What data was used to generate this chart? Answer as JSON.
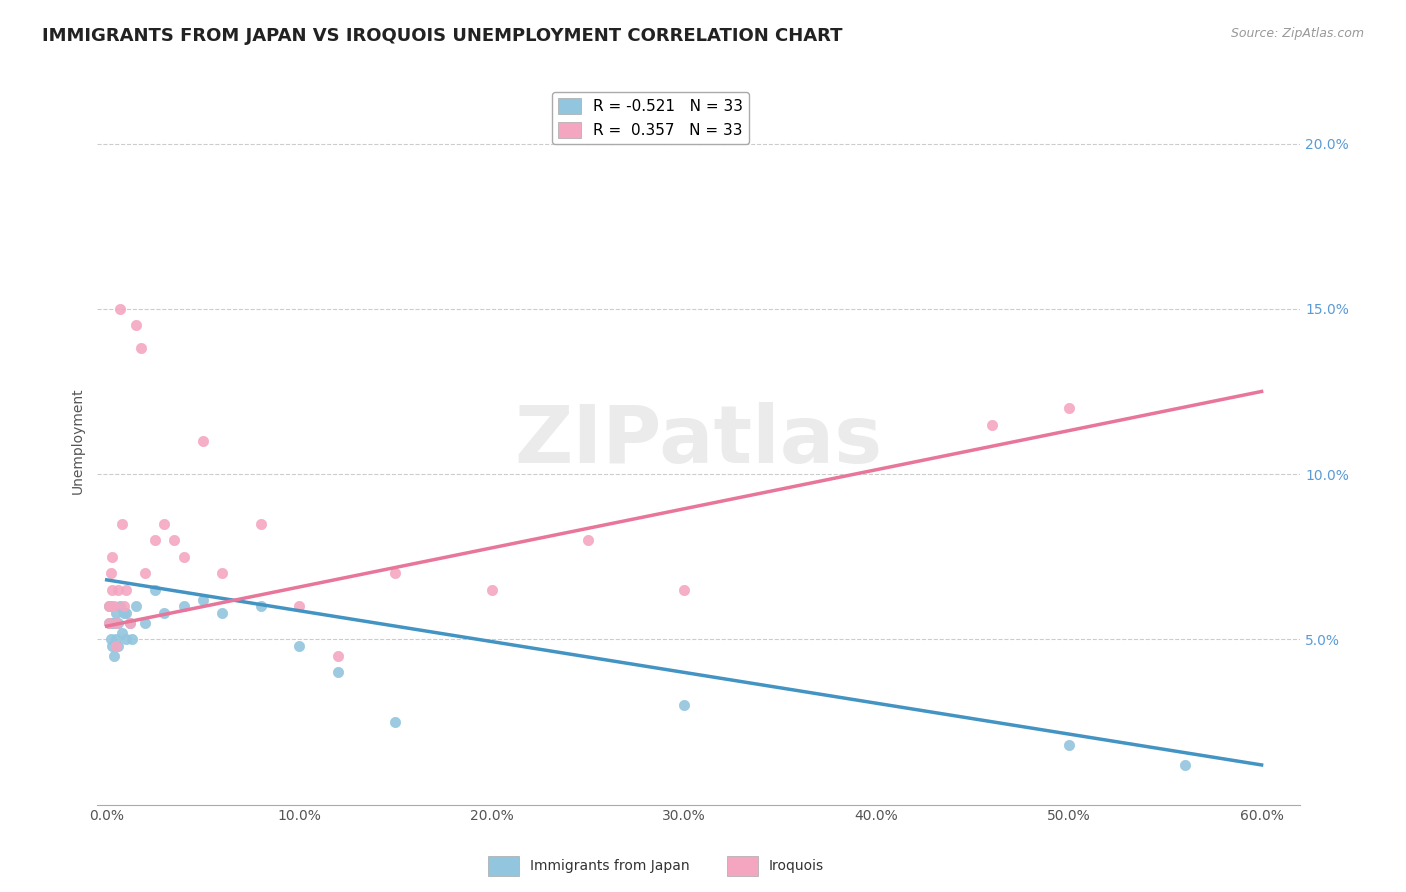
{
  "title": "IMMIGRANTS FROM JAPAN VS IROQUOIS UNEMPLOYMENT CORRELATION CHART",
  "source": "Source: ZipAtlas.com",
  "xlabel_japan": "Immigrants from Japan",
  "xlabel_iroquois": "Iroquois",
  "ylabel": "Unemployment",
  "watermark": "ZIPatlas",
  "legend": [
    {
      "label": "R = -0.521   N = 33",
      "color": "#92c5de"
    },
    {
      "label": "R =  0.357   N = 33",
      "color": "#f4a6c0"
    }
  ],
  "japan_scatter_x": [
    0.001,
    0.001,
    0.002,
    0.002,
    0.003,
    0.003,
    0.004,
    0.004,
    0.005,
    0.005,
    0.006,
    0.006,
    0.007,
    0.008,
    0.009,
    0.01,
    0.01,
    0.012,
    0.013,
    0.015,
    0.02,
    0.025,
    0.03,
    0.04,
    0.05,
    0.06,
    0.08,
    0.1,
    0.12,
    0.15,
    0.3,
    0.5,
    0.56
  ],
  "japan_scatter_y": [
    0.06,
    0.055,
    0.055,
    0.05,
    0.055,
    0.048,
    0.055,
    0.045,
    0.058,
    0.05,
    0.055,
    0.048,
    0.06,
    0.052,
    0.058,
    0.058,
    0.05,
    0.055,
    0.05,
    0.06,
    0.055,
    0.065,
    0.058,
    0.06,
    0.062,
    0.058,
    0.06,
    0.048,
    0.04,
    0.025,
    0.03,
    0.018,
    0.012
  ],
  "iroquois_scatter_x": [
    0.001,
    0.001,
    0.002,
    0.002,
    0.003,
    0.003,
    0.004,
    0.005,
    0.005,
    0.006,
    0.007,
    0.008,
    0.009,
    0.01,
    0.012,
    0.015,
    0.018,
    0.02,
    0.025,
    0.03,
    0.035,
    0.04,
    0.05,
    0.06,
    0.08,
    0.1,
    0.12,
    0.15,
    0.2,
    0.25,
    0.3,
    0.46,
    0.5
  ],
  "iroquois_scatter_y": [
    0.06,
    0.055,
    0.07,
    0.06,
    0.075,
    0.065,
    0.06,
    0.055,
    0.048,
    0.065,
    0.15,
    0.085,
    0.06,
    0.065,
    0.055,
    0.145,
    0.138,
    0.07,
    0.08,
    0.085,
    0.08,
    0.075,
    0.11,
    0.07,
    0.085,
    0.06,
    0.045,
    0.07,
    0.065,
    0.08,
    0.065,
    0.115,
    0.12
  ],
  "japan_line_x": [
    0.0,
    0.6
  ],
  "japan_line_y": [
    0.068,
    0.012
  ],
  "iroquois_line_x": [
    0.0,
    0.6
  ],
  "iroquois_line_y": [
    0.054,
    0.125
  ],
  "xlim": [
    -0.005,
    0.62
  ],
  "ylim": [
    0.0,
    0.22
  ],
  "xticks": [
    0.0,
    0.1,
    0.2,
    0.3,
    0.4,
    0.5,
    0.6
  ],
  "xticklabels": [
    "0.0%",
    "10.0%",
    "20.0%",
    "30.0%",
    "40.0%",
    "50.0%",
    "60.0%"
  ],
  "yticks_right": [
    0.05,
    0.1,
    0.15,
    0.2
  ],
  "yticklabels_right": [
    "5.0%",
    "10.0%",
    "15.0%",
    "20.0%"
  ],
  "japan_color": "#92c5de",
  "iroquois_color": "#f4a6c0",
  "japan_line_color": "#4393c3",
  "iroquois_line_color": "#e8759a",
  "background_color": "#ffffff",
  "grid_color": "#cccccc",
  "title_fontsize": 13,
  "axis_fontsize": 10,
  "scatter_size": 55,
  "scatter_alpha": 0.9,
  "watermark_color": "#d8d8d8",
  "watermark_fontsize": 58,
  "right_tick_color": "#5b9bd5"
}
